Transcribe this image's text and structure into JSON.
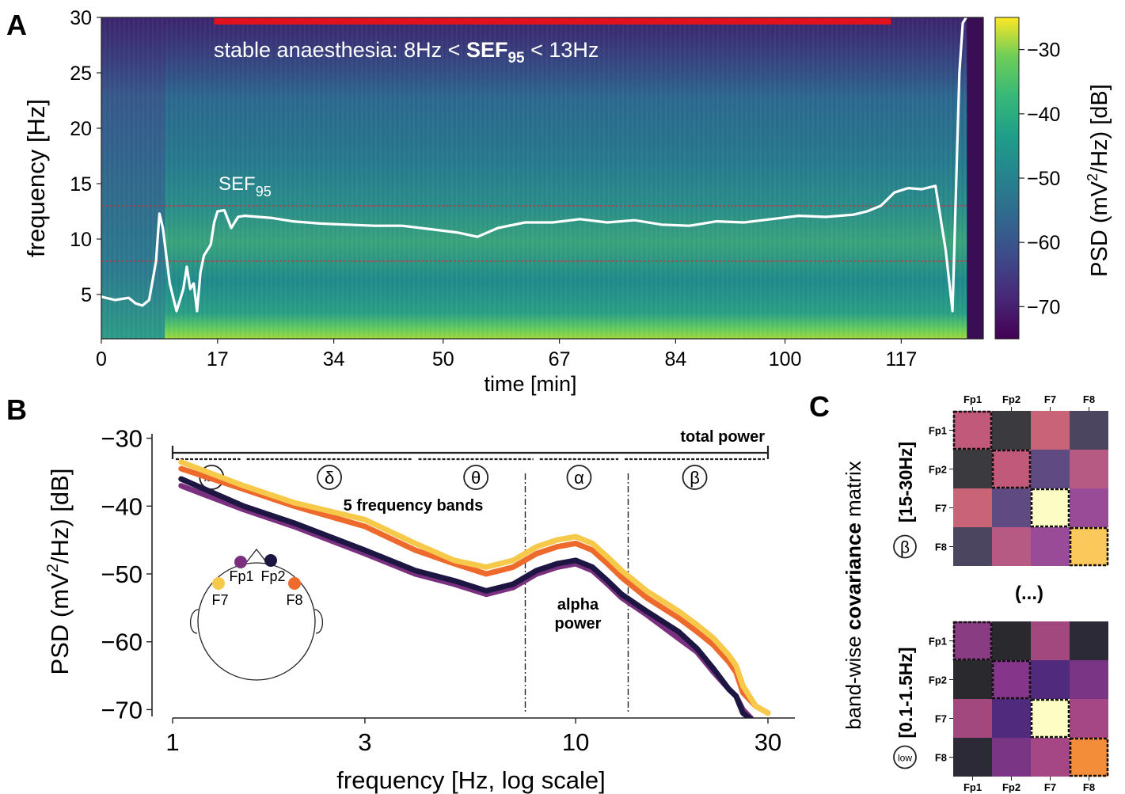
{
  "panel_labels": {
    "a": "A",
    "b": "B",
    "c": "C"
  },
  "colors": {
    "Fp1": "#7b2f7f",
    "Fp2": "#1d1642",
    "F7": "#f6c94b",
    "F8": "#ee6a2c",
    "sef_line": "#ffffff",
    "anaesthesia_bar": "#e3111b"
  },
  "chart_data": [
    {
      "id": "A",
      "type": "heatmap",
      "colormap": "viridis",
      "xlabel": "time [min]",
      "ylabel": "frequency [Hz]",
      "xlim": [
        0,
        129
      ],
      "ylim": [
        1,
        30
      ],
      "xticks": [
        0,
        17,
        34,
        50,
        67,
        84,
        100,
        117
      ],
      "yticks": [
        5,
        10,
        15,
        20,
        25,
        30
      ],
      "colorbar": {
        "label_prefix": "PSD (mV",
        "label_exp": "2",
        "label_suffix": "/Hz) [dB]",
        "range": [
          -75,
          -25
        ],
        "ticks": [
          -30,
          -40,
          -50,
          -60,
          -70
        ]
      },
      "annotation": {
        "pre": "stable anaesthesia: 8Hz < ",
        "bold": "SEF",
        "bold_sub": "95",
        "post": " < 13Hz"
      },
      "anaesthesia_period": [
        16.5,
        115.5
      ],
      "threshold_lines": [
        8,
        13
      ],
      "sef_label": {
        "main": "SEF",
        "sub": "95"
      },
      "sef95": {
        "t": [
          0,
          2,
          4,
          5,
          6,
          7,
          8,
          8.5,
          9,
          10,
          11,
          12,
          12.5,
          13,
          13.5,
          14,
          14.5,
          15,
          16,
          16.5,
          17,
          18,
          19,
          20,
          21,
          23,
          25,
          28,
          32,
          36,
          40,
          44,
          48,
          52,
          55,
          58,
          62,
          66,
          70,
          74,
          78,
          82,
          86,
          90,
          94,
          98,
          102,
          106,
          110,
          112,
          114,
          116,
          118,
          120,
          122,
          123.5,
          124.5,
          125.5,
          126,
          126.5
        ],
        "hz": [
          4.8,
          4.5,
          4.7,
          4.2,
          4.0,
          4.5,
          8.0,
          12.3,
          11.0,
          6.0,
          3.5,
          5.5,
          7.5,
          5.5,
          6.0,
          3.5,
          7.0,
          8.5,
          9.5,
          11.5,
          12.5,
          12.6,
          11.0,
          12.0,
          12.1,
          12.0,
          11.9,
          11.6,
          11.4,
          11.3,
          11.2,
          11.2,
          10.9,
          10.6,
          10.2,
          11.0,
          11.5,
          11.5,
          11.8,
          11.5,
          11.7,
          11.3,
          11.2,
          11.6,
          11.5,
          11.8,
          12.1,
          12.0,
          12.2,
          12.5,
          13.0,
          14.2,
          14.6,
          14.5,
          14.8,
          9.0,
          3.5,
          25.0,
          29.5,
          30.0
        ]
      }
    },
    {
      "id": "B",
      "type": "line",
      "xlabel": "frequency [Hz, log scale]",
      "ylabel_prefix": "PSD (mV",
      "ylabel_exp": "2",
      "ylabel_suffix": "/Hz) [dB]",
      "xscale": "log",
      "xlim": [
        1,
        30
      ],
      "ylim": [
        -71,
        -29
      ],
      "xticks": [
        1,
        3,
        10,
        30
      ],
      "yticks": [
        -30,
        -40,
        -50,
        -60,
        -70
      ],
      "band_labels": [
        "low",
        "δ",
        "θ",
        "α",
        "β"
      ],
      "band_edges": [
        1,
        1.5,
        4,
        8,
        13,
        30
      ],
      "alpha_lines": [
        7.5,
        13.5
      ],
      "total_power_label": "total power",
      "five_bands_label": "5 frequency bands",
      "alpha_power_label": [
        "alpha",
        "power"
      ],
      "electrodes": [
        "Fp1",
        "Fp2",
        "F7",
        "F8"
      ],
      "x": [
        1.05,
        1.5,
        2,
        3,
        4,
        5,
        6,
        7,
        8,
        9,
        10,
        11,
        12,
        13,
        15,
        18,
        20,
        22,
        24,
        25,
        26,
        28,
        30
      ],
      "series": [
        {
          "name": "Fp1",
          "values": [
            -37.0,
            -40.5,
            -43.0,
            -47.0,
            -50.0,
            -51.5,
            -53.0,
            -52.0,
            -50.0,
            -49.0,
            -48.5,
            -49.5,
            -51.5,
            -53.5,
            -56.0,
            -59.5,
            -61.5,
            -64.5,
            -67.0,
            -68.0,
            -70.0,
            -72,
            -72
          ]
        },
        {
          "name": "Fp2",
          "values": [
            -36.0,
            -40.0,
            -42.5,
            -46.5,
            -49.5,
            -51.0,
            -52.5,
            -51.5,
            -49.5,
            -48.5,
            -48.0,
            -49.0,
            -51.0,
            -53.0,
            -55.5,
            -58.5,
            -61.0,
            -64.0,
            -67.0,
            -68.0,
            -70.5,
            -72,
            -72
          ]
        },
        {
          "name": "F7",
          "values": [
            -33.5,
            -37.0,
            -39.5,
            -42.0,
            -45.5,
            -48.0,
            -49.0,
            -48.0,
            -46.0,
            -45.0,
            -44.5,
            -45.5,
            -47.5,
            -49.5,
            -52.5,
            -55.5,
            -57.5,
            -59.5,
            -62.0,
            -63.5,
            -66.5,
            -69.5,
            -70.5
          ]
        },
        {
          "name": "F8",
          "values": [
            -34.5,
            -37.5,
            -40.0,
            -43.0,
            -46.5,
            -48.5,
            -50.0,
            -49.0,
            -47.0,
            -46.0,
            -45.5,
            -46.5,
            -48.5,
            -50.5,
            -53.5,
            -56.5,
            -58.5,
            -60.5,
            -63.0,
            -64.5,
            -67.5,
            -69.5,
            -70.5
          ]
        }
      ]
    },
    {
      "id": "C",
      "type": "heatmap",
      "ylabel_pre": "band-wise ",
      "ylabel_bold": "covariance",
      "ylabel_post": " matrix",
      "channels": [
        "Fp1",
        "Fp2",
        "F7",
        "F8"
      ],
      "ellipsis": "(...)",
      "matrices": [
        {
          "band_symbol": "β",
          "band_label": "[15-30Hz]",
          "colors": [
            [
              "#c0597a",
              "#3a3a3f",
              "#c96478",
              "#4b4560"
            ],
            [
              "#3a3a3f",
              "#c0597a",
              "#5f4a82",
              "#b65a84"
            ],
            [
              "#c96478",
              "#5f4a82",
              "#fdfcc5",
              "#9a4b98"
            ],
            [
              "#4b4560",
              "#b65a84",
              "#9a4b98",
              "#fbc95b"
            ]
          ]
        },
        {
          "band_symbol": "low",
          "band_label": "[0.1-1.5Hz]",
          "colors": [
            [
              "#8a3c82",
              "#2a2a2e",
              "#a3477f",
              "#2c2a36"
            ],
            [
              "#2a2a2e",
              "#85368a",
              "#4f2a7d",
              "#7a3585"
            ],
            [
              "#a3477f",
              "#4f2a7d",
              "#fefdc4",
              "#a44784"
            ],
            [
              "#2c2a36",
              "#7a3585",
              "#a44784",
              "#f48d3a"
            ]
          ]
        }
      ]
    }
  ]
}
